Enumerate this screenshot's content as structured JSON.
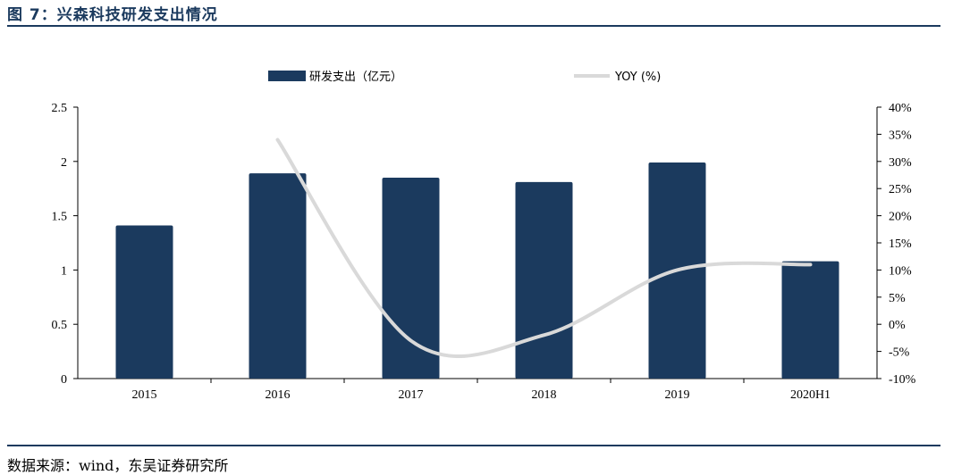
{
  "figure": {
    "title": "图 7：兴森科技研发支出情况",
    "source": "数据来源：wind，东吴证券研究所"
  },
  "colors": {
    "bar": "#1b3a5e",
    "line": "#d9d9d9",
    "accent": "#1b3a5e"
  },
  "chart_data": {
    "type": "bar",
    "title": "",
    "categories": [
      "2015",
      "2016",
      "2017",
      "2018",
      "2019",
      "2020H1"
    ],
    "series": [
      {
        "name": "研发支出（亿元）",
        "type": "bar",
        "axis": "left",
        "values": [
          1.41,
          1.89,
          1.85,
          1.81,
          1.99,
          1.08
        ]
      },
      {
        "name": "YOY (%)",
        "type": "line",
        "axis": "right",
        "smooth": true,
        "values": [
          null,
          34,
          -3,
          -2,
          10,
          11
        ]
      }
    ],
    "y_left": {
      "ylim": [
        0,
        2.5
      ],
      "ticks": [
        "0",
        "0.5",
        "1",
        "1.5",
        "2",
        "2.5"
      ]
    },
    "y_right": {
      "ylim": [
        -10,
        40
      ],
      "ticks": [
        "-10%",
        "-5%",
        "0%",
        "5%",
        "10%",
        "15%",
        "20%",
        "25%",
        "30%",
        "35%",
        "40%"
      ]
    },
    "legend": {
      "placement": "top-center",
      "entries": [
        "研发支出（亿元）",
        "YOY (%)"
      ]
    },
    "grid": false
  }
}
